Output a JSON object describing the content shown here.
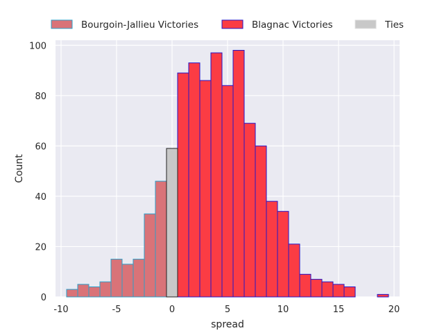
{
  "chart_data": {
    "type": "bar",
    "xlabel": "spread",
    "ylabel": "Count",
    "xlim": [
      -10.5,
      20.5
    ],
    "ylim": [
      0,
      102
    ],
    "xticks": [
      -10,
      -5,
      0,
      5,
      10,
      15,
      20
    ],
    "yticks": [
      0,
      20,
      40,
      60,
      80,
      100
    ],
    "grid": true,
    "legend_position": "top",
    "series": [
      {
        "name": "Bourgoin-Jallieu Victories",
        "fill": "#d97378",
        "edge": "#2a9fc9",
        "x": [
          -9,
          -8,
          -7,
          -6,
          -5,
          -4,
          -3,
          -2,
          -1
        ],
        "values": [
          3,
          5,
          4,
          6,
          15,
          13,
          15,
          33,
          46
        ]
      },
      {
        "name": "Blagnac Victories",
        "fill": "#fb3c44",
        "edge": "#2416c8",
        "x": [
          1,
          2,
          3,
          4,
          5,
          6,
          7,
          8,
          9,
          10,
          11,
          12,
          13,
          14,
          15,
          16,
          17,
          18,
          19
        ],
        "values": [
          89,
          93,
          86,
          97,
          84,
          98,
          69,
          60,
          38,
          34,
          21,
          9,
          7,
          6,
          5,
          4,
          0,
          0,
          1
        ]
      },
      {
        "name": "Ties",
        "fill": "#c8c8c8",
        "edge": "#222222",
        "x": [
          0
        ],
        "values": [
          59
        ]
      }
    ]
  }
}
